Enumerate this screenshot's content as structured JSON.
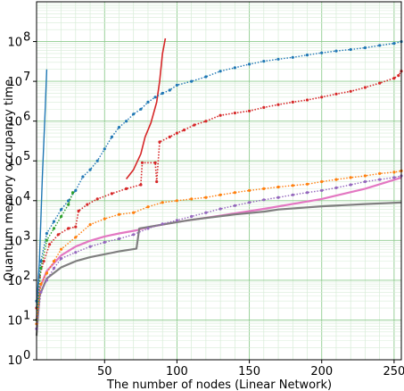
{
  "chart_data": {
    "type": "line",
    "title": "",
    "xlabel": "The number of nodes (Linear Network)",
    "ylabel": "Quantum memory occupancy time",
    "xlim": [
      3,
      255
    ],
    "ylim_log10": [
      0,
      9
    ],
    "yscale": "log",
    "grid": true,
    "legend": "none",
    "x_ticks": [
      {
        "value": 50,
        "label": "50"
      },
      {
        "value": 100,
        "label": "100"
      },
      {
        "value": 150,
        "label": "150"
      },
      {
        "value": 200,
        "label": "200"
      },
      {
        "value": 250,
        "label": "250"
      }
    ],
    "y_ticks": [
      {
        "exp": 0,
        "base": "10",
        "sup": "0"
      },
      {
        "exp": 1,
        "base": "10",
        "sup": "1"
      },
      {
        "exp": 2,
        "base": "10",
        "sup": "2"
      },
      {
        "exp": 3,
        "base": "10",
        "sup": "3"
      },
      {
        "exp": 4,
        "base": "10",
        "sup": "4"
      },
      {
        "exp": 5,
        "base": "10",
        "sup": "5"
      },
      {
        "exp": 6,
        "base": "10",
        "sup": "6"
      },
      {
        "exp": 7,
        "base": "10",
        "sup": "7"
      },
      {
        "exp": 8,
        "base": "10",
        "sup": "8"
      }
    ],
    "series": [
      {
        "color": "#e377c2",
        "style": "solid",
        "width": 2.2,
        "x": [
          3,
          5,
          10,
          20,
          30,
          40,
          50,
          60,
          72,
          80,
          100,
          130,
          160,
          200,
          230,
          255
        ],
        "y": [
          10,
          60,
          170,
          420,
          700,
          980,
          1260,
          1500,
          1800,
          2150,
          2900,
          4200,
          6200,
          11000,
          20000,
          38000
        ]
      },
      {
        "color": "#7f7f7f",
        "style": "solid",
        "width": 2.2,
        "x": [
          3,
          5,
          10,
          20,
          30,
          40,
          50,
          60,
          72,
          74,
          90,
          110,
          140,
          160,
          170,
          200,
          230,
          255
        ],
        "y": [
          4,
          40,
          110,
          210,
          300,
          380,
          450,
          530,
          620,
          2000,
          2500,
          3300,
          4500,
          5300,
          6000,
          7200,
          8200,
          9000
        ]
      },
      {
        "color": "#d62728",
        "style": "dotted",
        "width": 1.6,
        "marker": "point",
        "x": [
          3,
          5,
          8,
          12,
          18,
          25,
          30,
          32,
          38,
          45,
          55,
          65,
          75,
          76,
          85,
          86,
          88,
          95,
          100,
          105,
          112,
          120,
          130,
          140,
          150,
          160,
          170,
          180,
          190,
          200,
          210,
          220,
          230,
          240,
          250,
          253,
          255
        ],
        "y": [
          20,
          120,
          300,
          800,
          1400,
          2000,
          2200,
          5500,
          8000,
          11000,
          15000,
          20000,
          25000,
          90000,
          90000,
          30000,
          300000,
          400000,
          500000,
          600000,
          800000,
          1000000,
          1400000,
          1600000,
          1800000,
          2200000,
          2600000,
          3000000,
          3400000,
          4000000,
          4800000,
          5600000,
          7000000,
          9000000,
          12000000,
          14000000,
          18000000
        ]
      },
      {
        "color": "#d62728",
        "style": "solid",
        "width": 1.6,
        "x": [
          65,
          70,
          75,
          78,
          82,
          86,
          88,
          90,
          92
        ],
        "y": [
          35000,
          60000,
          150000,
          400000,
          900000,
          3000000,
          10000000,
          50000000,
          120000000
        ]
      },
      {
        "color": "#1f77b4",
        "style": "dotted",
        "width": 1.4,
        "marker": "point",
        "x": [
          3,
          6,
          10,
          15,
          20,
          25,
          30,
          35,
          40,
          45,
          50,
          55,
          60,
          65,
          70,
          75,
          80,
          85,
          90,
          95,
          100,
          110,
          120,
          130,
          140,
          150,
          160,
          170,
          180,
          190,
          200,
          210,
          220,
          230,
          240,
          250,
          255
        ],
        "y": [
          30,
          300,
          1500,
          3000,
          6000,
          10000,
          18000,
          40000,
          60000,
          100000,
          200000,
          400000,
          700000,
          1000000,
          1500000,
          2000000,
          3000000,
          4000000,
          5000000,
          6000000,
          8000000,
          10000000,
          13000000,
          18000000,
          22000000,
          27000000,
          32000000,
          36000000,
          40000000,
          46000000,
          52000000,
          58000000,
          63000000,
          70000000,
          80000000,
          90000000,
          100000000
        ]
      },
      {
        "color": "#1f77b4",
        "style": "solid",
        "width": 1.4,
        "x": [
          3,
          5,
          7,
          9,
          10
        ],
        "y": [
          20,
          300,
          40000,
          2000000,
          20000000
        ]
      },
      {
        "color": "#2ca02c",
        "style": "dotted",
        "width": 1.4,
        "marker": "point",
        "x": [
          3,
          6,
          10,
          15,
          20,
          25,
          28
        ],
        "y": [
          10,
          200,
          1000,
          2000,
          4000,
          8000,
          16000
        ]
      },
      {
        "color": "#ff7f0e",
        "style": "dotted",
        "width": 1.4,
        "marker": "point",
        "x": [
          3,
          6,
          10,
          15,
          20,
          30,
          40,
          50,
          60,
          70,
          80,
          90,
          100,
          110,
          120,
          130,
          140,
          150,
          160,
          170,
          180,
          190,
          200,
          210,
          220,
          230,
          240,
          250,
          255
        ],
        "y": [
          8,
          80,
          150,
          300,
          600,
          1200,
          2500,
          3500,
          4500,
          5000,
          7000,
          9000,
          10000,
          11000,
          12000,
          14000,
          16000,
          18000,
          20000,
          22000,
          24000,
          26000,
          30000,
          34000,
          38000,
          42000,
          48000,
          52000,
          56000
        ]
      },
      {
        "color": "#9467bd",
        "style": "dotted",
        "width": 1.4,
        "marker": "point",
        "x": [
          3,
          6,
          10,
          15,
          20,
          30,
          40,
          50,
          60,
          70,
          80,
          90,
          100,
          110,
          120,
          130,
          140,
          150,
          160,
          170,
          180,
          190,
          200,
          210,
          220,
          230,
          240,
          250,
          255
        ],
        "y": [
          6,
          50,
          100,
          200,
          350,
          500,
          700,
          900,
          1100,
          1400,
          2000,
          2600,
          3200,
          4000,
          5000,
          6200,
          7500,
          9000,
          10500,
          12000,
          14000,
          16000,
          18000,
          21000,
          25000,
          30000,
          34000,
          38000,
          42000
        ]
      }
    ]
  }
}
